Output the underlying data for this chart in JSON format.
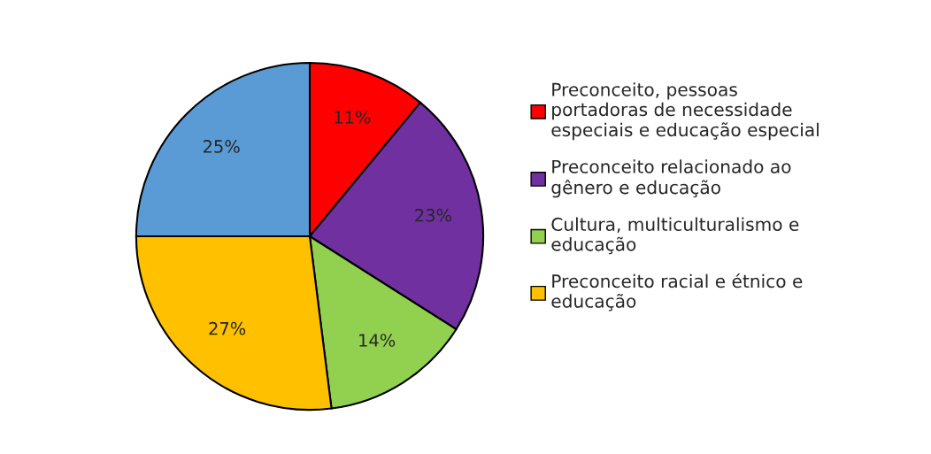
{
  "chart_data": {
    "type": "pie",
    "categories": [
      "Preconceito, pessoas\nportadoras de necessidade\nespeciais e educação especial",
      "Preconceito relacionado ao\ngênero e educação",
      "Cultura, multiculturalismo e\neducação",
      "Preconceito racial e étnico e\neducação",
      null
    ],
    "values": [
      11,
      23,
      14,
      27,
      25
    ],
    "value_labels": [
      "11%",
      "23%",
      "14%",
      "27%",
      "25%"
    ],
    "colors": [
      "#ff0000",
      "#7030a0",
      "#92d050",
      "#ffc000",
      "#5b9bd5"
    ],
    "legend": "right"
  }
}
